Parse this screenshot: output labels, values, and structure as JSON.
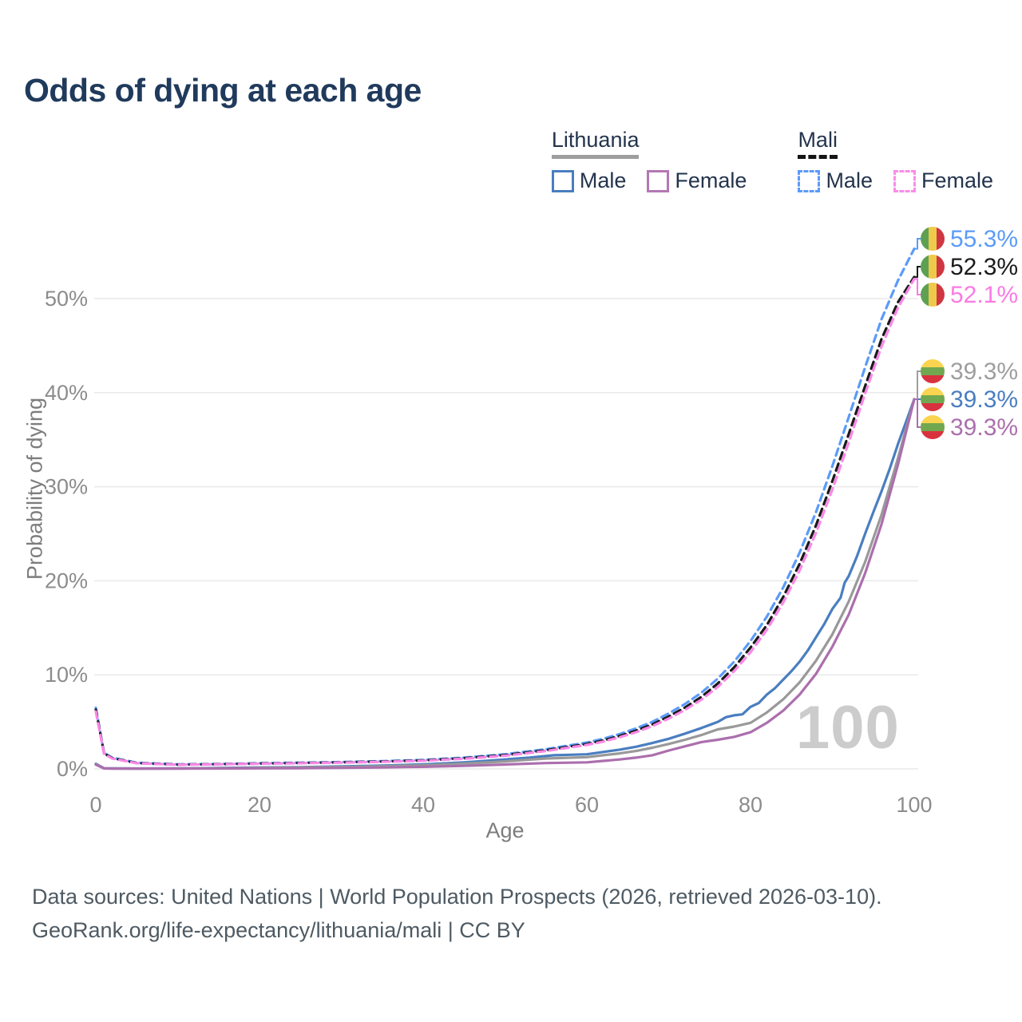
{
  "title": "Odds of dying at each age",
  "legend": {
    "groups": [
      {
        "name": "Lithuania",
        "line_style": "solid",
        "underline_color": "#9e9e9e",
        "items": [
          {
            "label": "Male",
            "color": "#4a7ec0",
            "dashed": false
          },
          {
            "label": "Female",
            "color": "#b478b4",
            "dashed": false
          }
        ]
      },
      {
        "name": "Mali",
        "line_style": "dashed",
        "underline_color": "#141414",
        "items": [
          {
            "label": "Male",
            "color": "#5b9bf8",
            "dashed": true
          },
          {
            "label": "Female",
            "color": "#fb8ce8",
            "dashed": true
          }
        ]
      }
    ]
  },
  "chart_data": {
    "type": "line",
    "title": "Odds of dying at each age",
    "xlabel": "Age",
    "ylabel": "Probability of dying",
    "xlim": [
      0,
      100
    ],
    "ylim": [
      0,
      55.5
    ],
    "x_ticks": [
      0,
      20,
      40,
      60,
      80,
      100
    ],
    "y_ticks": [
      0,
      10,
      20,
      30,
      40,
      50
    ],
    "y_tick_suffix": "%",
    "grid": true,
    "legend_position": "top-right",
    "watermark": "100",
    "series": [
      {
        "id": "lithuania-male",
        "name": "Lithuania Male",
        "color": "#4a7ec0",
        "dashed": false,
        "end_value": 39.3,
        "points": [
          [
            0,
            0.55
          ],
          [
            1,
            0.07
          ],
          [
            2,
            0.05
          ],
          [
            5,
            0.04
          ],
          [
            10,
            0.05
          ],
          [
            15,
            0.09
          ],
          [
            20,
            0.15
          ],
          [
            25,
            0.19
          ],
          [
            30,
            0.26
          ],
          [
            35,
            0.35
          ],
          [
            40,
            0.48
          ],
          [
            45,
            0.7
          ],
          [
            50,
            1.0
          ],
          [
            53,
            1.2
          ],
          [
            56,
            1.45
          ],
          [
            58,
            1.5
          ],
          [
            60,
            1.55
          ],
          [
            62,
            1.8
          ],
          [
            64,
            2.05
          ],
          [
            66,
            2.35
          ],
          [
            68,
            2.75
          ],
          [
            70,
            3.2
          ],
          [
            72,
            3.75
          ],
          [
            74,
            4.35
          ],
          [
            76,
            5.0
          ],
          [
            77,
            5.5
          ],
          [
            78,
            5.7
          ],
          [
            79,
            5.8
          ],
          [
            80,
            6.6
          ],
          [
            81,
            7.0
          ],
          [
            82,
            7.9
          ],
          [
            83,
            8.6
          ],
          [
            84,
            9.5
          ],
          [
            85,
            10.4
          ],
          [
            86,
            11.4
          ],
          [
            87,
            12.6
          ],
          [
            88,
            14.0
          ],
          [
            89,
            15.4
          ],
          [
            90,
            17.0
          ],
          [
            91,
            18.2
          ],
          [
            91.5,
            19.8
          ],
          [
            92,
            20.5
          ],
          [
            93,
            22.6
          ],
          [
            94,
            25.0
          ],
          [
            95,
            27.3
          ],
          [
            96,
            29.5
          ],
          [
            97,
            31.9
          ],
          [
            98,
            34.5
          ],
          [
            99,
            36.9
          ],
          [
            100,
            39.3
          ]
        ]
      },
      {
        "id": "lithuania",
        "name": "Lithuania",
        "color": "#999999",
        "dashed": false,
        "end_value": 39.3,
        "points": [
          [
            0,
            0.5
          ],
          [
            1,
            0.06
          ],
          [
            2,
            0.04
          ],
          [
            5,
            0.03
          ],
          [
            10,
            0.04
          ],
          [
            15,
            0.07
          ],
          [
            20,
            0.11
          ],
          [
            25,
            0.15
          ],
          [
            30,
            0.2
          ],
          [
            35,
            0.28
          ],
          [
            40,
            0.38
          ],
          [
            45,
            0.55
          ],
          [
            50,
            0.8
          ],
          [
            55,
            1.1
          ],
          [
            60,
            1.25
          ],
          [
            62,
            1.45
          ],
          [
            64,
            1.65
          ],
          [
            66,
            1.9
          ],
          [
            68,
            2.25
          ],
          [
            70,
            2.65
          ],
          [
            72,
            3.1
          ],
          [
            74,
            3.6
          ],
          [
            76,
            4.2
          ],
          [
            78,
            4.5
          ],
          [
            80,
            4.9
          ],
          [
            82,
            6.0
          ],
          [
            84,
            7.4
          ],
          [
            86,
            9.2
          ],
          [
            88,
            11.5
          ],
          [
            90,
            14.3
          ],
          [
            92,
            17.8
          ],
          [
            94,
            22.0
          ],
          [
            96,
            27.0
          ],
          [
            98,
            33.0
          ],
          [
            100,
            39.3
          ]
        ]
      },
      {
        "id": "lithuania-female",
        "name": "Lithuania Female",
        "color": "#ab6fad",
        "dashed": false,
        "end_value": 39.3,
        "points": [
          [
            0,
            0.45
          ],
          [
            1,
            0.05
          ],
          [
            2,
            0.03
          ],
          [
            5,
            0.03
          ],
          [
            10,
            0.03
          ],
          [
            15,
            0.04
          ],
          [
            20,
            0.06
          ],
          [
            25,
            0.08
          ],
          [
            30,
            0.11
          ],
          [
            35,
            0.16
          ],
          [
            40,
            0.22
          ],
          [
            45,
            0.32
          ],
          [
            50,
            0.47
          ],
          [
            55,
            0.62
          ],
          [
            60,
            0.7
          ],
          [
            62,
            0.85
          ],
          [
            64,
            1.0
          ],
          [
            66,
            1.2
          ],
          [
            68,
            1.45
          ],
          [
            70,
            1.95
          ],
          [
            72,
            2.4
          ],
          [
            74,
            2.85
          ],
          [
            76,
            3.1
          ],
          [
            78,
            3.4
          ],
          [
            80,
            3.9
          ],
          [
            82,
            4.9
          ],
          [
            84,
            6.2
          ],
          [
            86,
            7.9
          ],
          [
            88,
            10.1
          ],
          [
            90,
            13.0
          ],
          [
            92,
            16.4
          ],
          [
            94,
            20.8
          ],
          [
            96,
            26.0
          ],
          [
            98,
            32.3
          ],
          [
            100,
            39.3
          ]
        ]
      },
      {
        "id": "mali-male",
        "name": "Mali Male",
        "color": "#5b9bf8",
        "dashed": true,
        "end_value": 55.3,
        "points": [
          [
            0,
            6.5
          ],
          [
            1,
            1.7
          ],
          [
            2,
            1.2
          ],
          [
            5,
            0.65
          ],
          [
            10,
            0.48
          ],
          [
            15,
            0.52
          ],
          [
            20,
            0.6
          ],
          [
            25,
            0.66
          ],
          [
            30,
            0.73
          ],
          [
            35,
            0.82
          ],
          [
            40,
            0.95
          ],
          [
            45,
            1.2
          ],
          [
            50,
            1.55
          ],
          [
            55,
            2.1
          ],
          [
            60,
            2.8
          ],
          [
            62,
            3.2
          ],
          [
            64,
            3.7
          ],
          [
            66,
            4.3
          ],
          [
            68,
            5.0
          ],
          [
            70,
            5.9
          ],
          [
            72,
            6.9
          ],
          [
            74,
            8.1
          ],
          [
            76,
            9.6
          ],
          [
            78,
            11.4
          ],
          [
            80,
            13.6
          ],
          [
            82,
            16.2
          ],
          [
            84,
            19.3
          ],
          [
            86,
            23.0
          ],
          [
            88,
            27.3
          ],
          [
            90,
            32.2
          ],
          [
            92,
            37.4
          ],
          [
            94,
            42.7
          ],
          [
            96,
            47.8
          ],
          [
            98,
            51.9
          ],
          [
            100,
            55.3
          ]
        ]
      },
      {
        "id": "mali",
        "name": "Mali",
        "color": "#1a1a1a",
        "dashed": true,
        "end_value": 52.3,
        "points": [
          [
            0,
            6.3
          ],
          [
            1,
            1.65
          ],
          [
            2,
            1.15
          ],
          [
            5,
            0.62
          ],
          [
            10,
            0.46
          ],
          [
            15,
            0.5
          ],
          [
            20,
            0.57
          ],
          [
            25,
            0.63
          ],
          [
            30,
            0.7
          ],
          [
            35,
            0.78
          ],
          [
            40,
            0.9
          ],
          [
            45,
            1.13
          ],
          [
            50,
            1.47
          ],
          [
            55,
            1.98
          ],
          [
            60,
            2.65
          ],
          [
            62,
            3.02
          ],
          [
            64,
            3.5
          ],
          [
            66,
            4.07
          ],
          [
            68,
            4.73
          ],
          [
            70,
            5.58
          ],
          [
            72,
            6.53
          ],
          [
            74,
            7.66
          ],
          [
            76,
            9.08
          ],
          [
            78,
            10.8
          ],
          [
            80,
            12.9
          ],
          [
            82,
            15.3
          ],
          [
            84,
            18.3
          ],
          [
            86,
            21.8
          ],
          [
            88,
            25.9
          ],
          [
            90,
            30.6
          ],
          [
            92,
            35.6
          ],
          [
            94,
            40.7
          ],
          [
            96,
            45.7
          ],
          [
            98,
            49.6
          ],
          [
            100,
            52.3
          ]
        ]
      },
      {
        "id": "mali-female",
        "name": "Mali Female",
        "color": "#fb87e7",
        "dashed": true,
        "end_value": 52.1,
        "points": [
          [
            0,
            6.1
          ],
          [
            1,
            1.6
          ],
          [
            2,
            1.1
          ],
          [
            5,
            0.6
          ],
          [
            10,
            0.44
          ],
          [
            15,
            0.48
          ],
          [
            20,
            0.55
          ],
          [
            25,
            0.6
          ],
          [
            30,
            0.67
          ],
          [
            35,
            0.75
          ],
          [
            40,
            0.87
          ],
          [
            45,
            1.08
          ],
          [
            50,
            1.4
          ],
          [
            55,
            1.9
          ],
          [
            60,
            2.55
          ],
          [
            62,
            2.9
          ],
          [
            64,
            3.36
          ],
          [
            66,
            3.9
          ],
          [
            68,
            4.55
          ],
          [
            70,
            5.35
          ],
          [
            72,
            6.27
          ],
          [
            74,
            7.36
          ],
          [
            76,
            8.72
          ],
          [
            78,
            10.4
          ],
          [
            80,
            12.4
          ],
          [
            82,
            14.8
          ],
          [
            84,
            17.7
          ],
          [
            86,
            21.1
          ],
          [
            88,
            25.1
          ],
          [
            90,
            29.7
          ],
          [
            92,
            34.7
          ],
          [
            94,
            39.9
          ],
          [
            96,
            44.9
          ],
          [
            98,
            49.0
          ],
          [
            100,
            52.1
          ]
        ]
      }
    ],
    "end_labels": {
      "top_group": [
        {
          "series": "mali-male",
          "text": "55.3%",
          "color": "#5b9bf8",
          "flag": "mali"
        },
        {
          "series": "mali",
          "text": "52.3%",
          "color": "#1a1a1a",
          "flag": "mali"
        },
        {
          "series": "mali-female",
          "text": "52.1%",
          "color": "#fb7ae4",
          "flag": "mali"
        }
      ],
      "bottom_group": [
        {
          "series": "lithuania",
          "text": "39.3%",
          "color": "#9e9e9e",
          "flag": "lithuania"
        },
        {
          "series": "lithuania-male",
          "text": "39.3%",
          "color": "#4a7ec0",
          "flag": "lithuania"
        },
        {
          "series": "lithuania-female",
          "text": "39.3%",
          "color": "#ab6fad",
          "flag": "lithuania"
        }
      ]
    },
    "flag_colors": {
      "mali": [
        "#5DA052",
        "#EFC94C",
        "#CE3742"
      ],
      "lithuania": [
        "#FAD450",
        "#71A84F",
        "#D8323F"
      ]
    }
  },
  "footer": {
    "line1": "Data sources: United Nations | World Population Prospects (2026, retrieved 2026-03-10).",
    "line2": "GeoRank.org/life-expectancy/lithuania/mali | CC BY"
  }
}
